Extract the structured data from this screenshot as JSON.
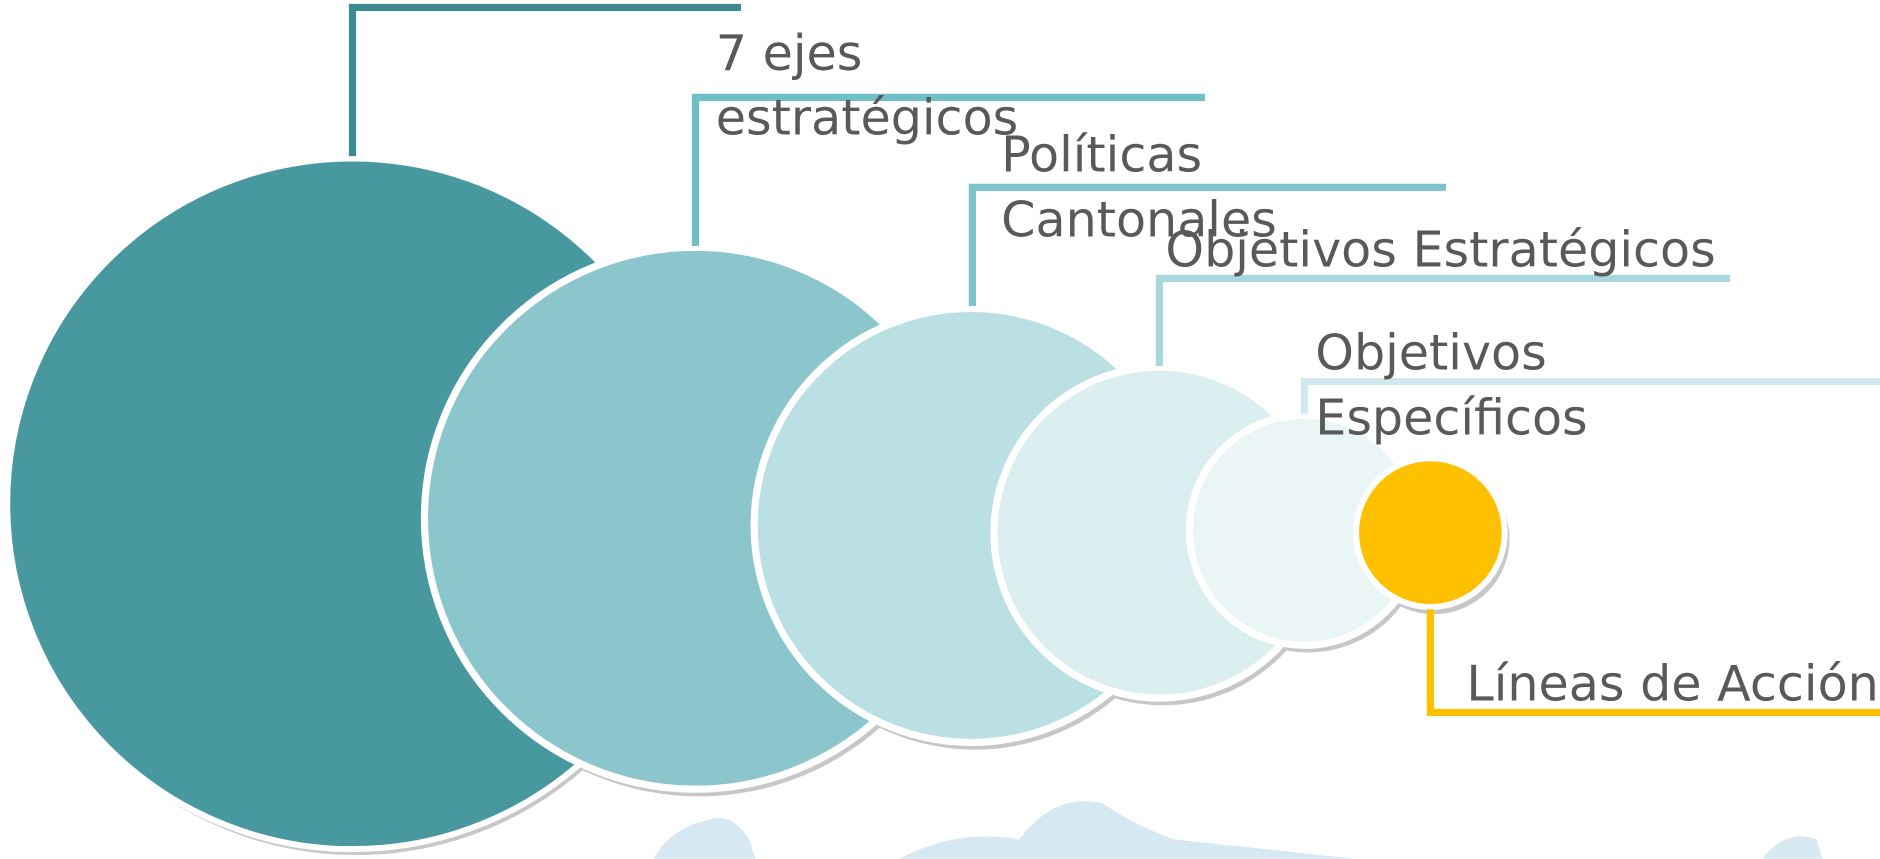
{
  "items": [
    {
      "lines": [
        "7 ejes",
        "estratégicos"
      ]
    },
    {
      "lines": [
        "Políticas",
        "Cantonales"
      ]
    },
    {
      "lines": [
        "Objetivos Estratégicos"
      ]
    },
    {
      "lines": [
        "Objetivos",
        "Específicos"
      ]
    },
    {
      "lines": [
        "Líneas de Acción"
      ]
    }
  ]
}
